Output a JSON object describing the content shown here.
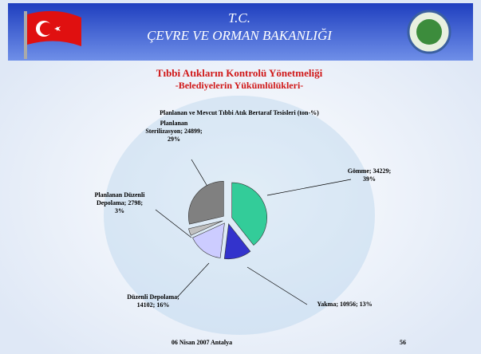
{
  "header": {
    "line1": "T.C.",
    "line2": "ÇEVRE VE ORMAN BAKANLIĞI"
  },
  "slide": {
    "title": "Tıbbi Atıkların Kontrolü Yönetmeliği",
    "subtitle": "-Belediyelerin Yükümlülükleri-"
  },
  "chart_data": {
    "type": "pie",
    "title": "Planlanan ve Mevcut Tıbbi Atık Bertaraf Tesisleri (ton-%)",
    "values": [
      34229,
      10956,
      14102,
      2798,
      24899
    ],
    "labels": [
      [
        "Gömme; 34229;",
        "39%"
      ],
      [
        "Yakma; 10956; 13%"
      ],
      [
        "Düzenli Depolama;",
        "14102; 16%"
      ],
      [
        "Planlanan Düzenli",
        "Depolama; 2798;",
        "3%"
      ],
      [
        "Planlanan",
        "Sterilizasyon; 24899;",
        "29%"
      ]
    ],
    "colors": [
      "#33cc99",
      "#3333cc",
      "#ccccff",
      "#c0c0c0",
      "#808080"
    ]
  },
  "footer": {
    "date": "06 Nisan 2007 Antalya",
    "page": "56"
  }
}
